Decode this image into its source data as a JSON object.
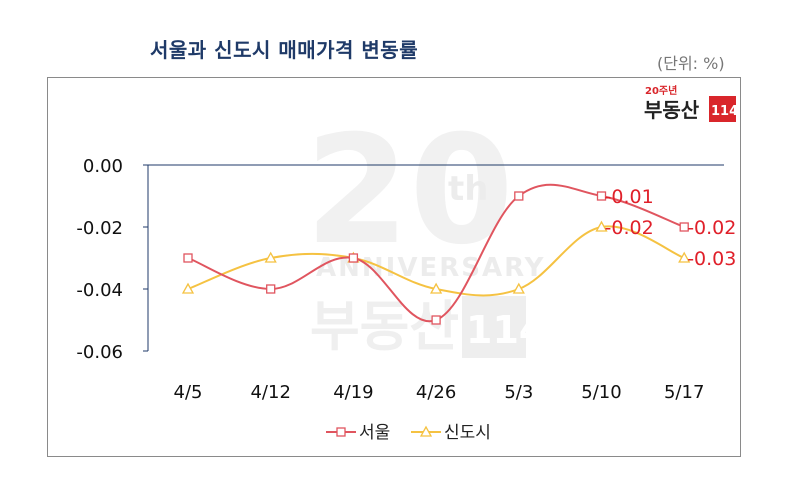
{
  "title": "서울과 신도시 매매가격 변동률",
  "unit": "(단위: %)",
  "logo": {
    "badge": "20주년",
    "brand": "부동산",
    "number": "114"
  },
  "watermark": {
    "big": "20",
    "sup": "th",
    "word": "ANNIVERSARY",
    "brand": "부동산",
    "number": "114"
  },
  "colors": {
    "title": "#1f3a68",
    "seoul": "#e0555f",
    "newtown": "#f5c242",
    "label": "#e0202a",
    "axis": "#1f3a68"
  },
  "chart_data": {
    "type": "line",
    "categories": [
      "4/5",
      "4/12",
      "4/19",
      "4/26",
      "5/3",
      "5/10",
      "5/17"
    ],
    "ylim": [
      -0.06,
      0.0
    ],
    "yticks": [
      "0.00",
      "-0.02",
      "-0.04",
      "-0.06"
    ],
    "ytick_values": [
      0.0,
      -0.02,
      -0.04,
      -0.06
    ],
    "series": [
      {
        "name": "서울",
        "marker": "square",
        "values": [
          -0.03,
          -0.04,
          -0.03,
          -0.05,
          -0.01,
          -0.01,
          -0.02
        ]
      },
      {
        "name": "신도시",
        "marker": "triangle",
        "values": [
          -0.04,
          -0.03,
          -0.03,
          -0.04,
          -0.04,
          -0.02,
          -0.03
        ]
      }
    ],
    "data_labels": [
      {
        "series": 0,
        "index": 5,
        "text": "-0.01"
      },
      {
        "series": 0,
        "index": 6,
        "text": "-0.02"
      },
      {
        "series": 1,
        "index": 5,
        "text": "-0.02"
      },
      {
        "series": 1,
        "index": 6,
        "text": "-0.03"
      }
    ],
    "legend_position": "bottom",
    "grid": false
  }
}
